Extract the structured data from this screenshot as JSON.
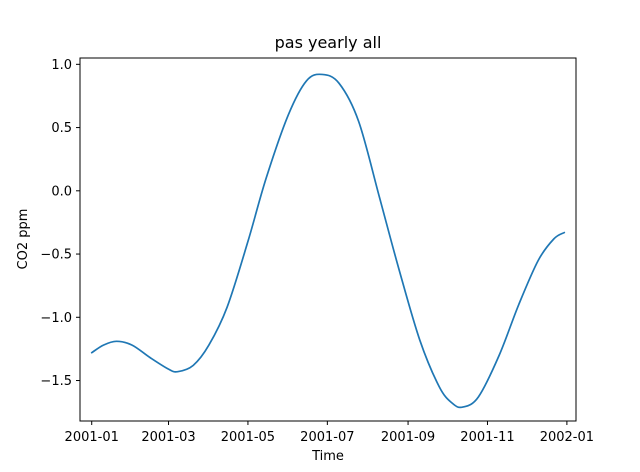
{
  "chart_data": {
    "type": "line",
    "title": "pas yearly all",
    "xlabel": "Time",
    "ylabel": "CO2 ppm",
    "xlim": [
      "2000-12-23",
      "2002-01-08"
    ],
    "ylim": [
      -1.82,
      1.05
    ],
    "xticks": [
      {
        "date": "2001-01-01",
        "label": "2001-01"
      },
      {
        "date": "2001-03-01",
        "label": "2001-03"
      },
      {
        "date": "2001-05-01",
        "label": "2001-05"
      },
      {
        "date": "2001-07-01",
        "label": "2001-07"
      },
      {
        "date": "2001-09-01",
        "label": "2001-09"
      },
      {
        "date": "2001-11-01",
        "label": "2001-11"
      },
      {
        "date": "2002-01-01",
        "label": "2002-01"
      }
    ],
    "yticks": [
      {
        "value": 1.0,
        "label": "1.0"
      },
      {
        "value": 0.5,
        "label": "0.5"
      },
      {
        "value": 0.0,
        "label": "0.0"
      },
      {
        "value": -0.5,
        "label": "−0.5"
      },
      {
        "value": -1.0,
        "label": "−1.0"
      },
      {
        "value": -1.5,
        "label": "−1.5"
      }
    ],
    "grid": false,
    "series": [
      {
        "color": "#1f77b4",
        "points": [
          {
            "x": "2001-01-01",
            "y": -1.28
          },
          {
            "x": "2001-01-10",
            "y": -1.22
          },
          {
            "x": "2001-01-20",
            "y": -1.19
          },
          {
            "x": "2001-02-01",
            "y": -1.22
          },
          {
            "x": "2001-02-15",
            "y": -1.32
          },
          {
            "x": "2001-03-01",
            "y": -1.41
          },
          {
            "x": "2001-03-08",
            "y": -1.43
          },
          {
            "x": "2001-03-20",
            "y": -1.38
          },
          {
            "x": "2001-04-01",
            "y": -1.22
          },
          {
            "x": "2001-04-15",
            "y": -0.92
          },
          {
            "x": "2001-05-01",
            "y": -0.4
          },
          {
            "x": "2001-05-15",
            "y": 0.1
          },
          {
            "x": "2001-06-01",
            "y": 0.6
          },
          {
            "x": "2001-06-15",
            "y": 0.87
          },
          {
            "x": "2001-06-27",
            "y": 0.92
          },
          {
            "x": "2001-07-10",
            "y": 0.85
          },
          {
            "x": "2001-07-25",
            "y": 0.55
          },
          {
            "x": "2001-08-10",
            "y": -0.05
          },
          {
            "x": "2001-08-25",
            "y": -0.62
          },
          {
            "x": "2001-09-10",
            "y": -1.18
          },
          {
            "x": "2001-09-25",
            "y": -1.55
          },
          {
            "x": "2001-10-05",
            "y": -1.68
          },
          {
            "x": "2001-10-13",
            "y": -1.71
          },
          {
            "x": "2001-10-25",
            "y": -1.63
          },
          {
            "x": "2001-11-10",
            "y": -1.3
          },
          {
            "x": "2001-11-25",
            "y": -0.9
          },
          {
            "x": "2001-12-10",
            "y": -0.55
          },
          {
            "x": "2001-12-22",
            "y": -0.38
          },
          {
            "x": "2001-12-30",
            "y": -0.33
          }
        ]
      }
    ]
  }
}
